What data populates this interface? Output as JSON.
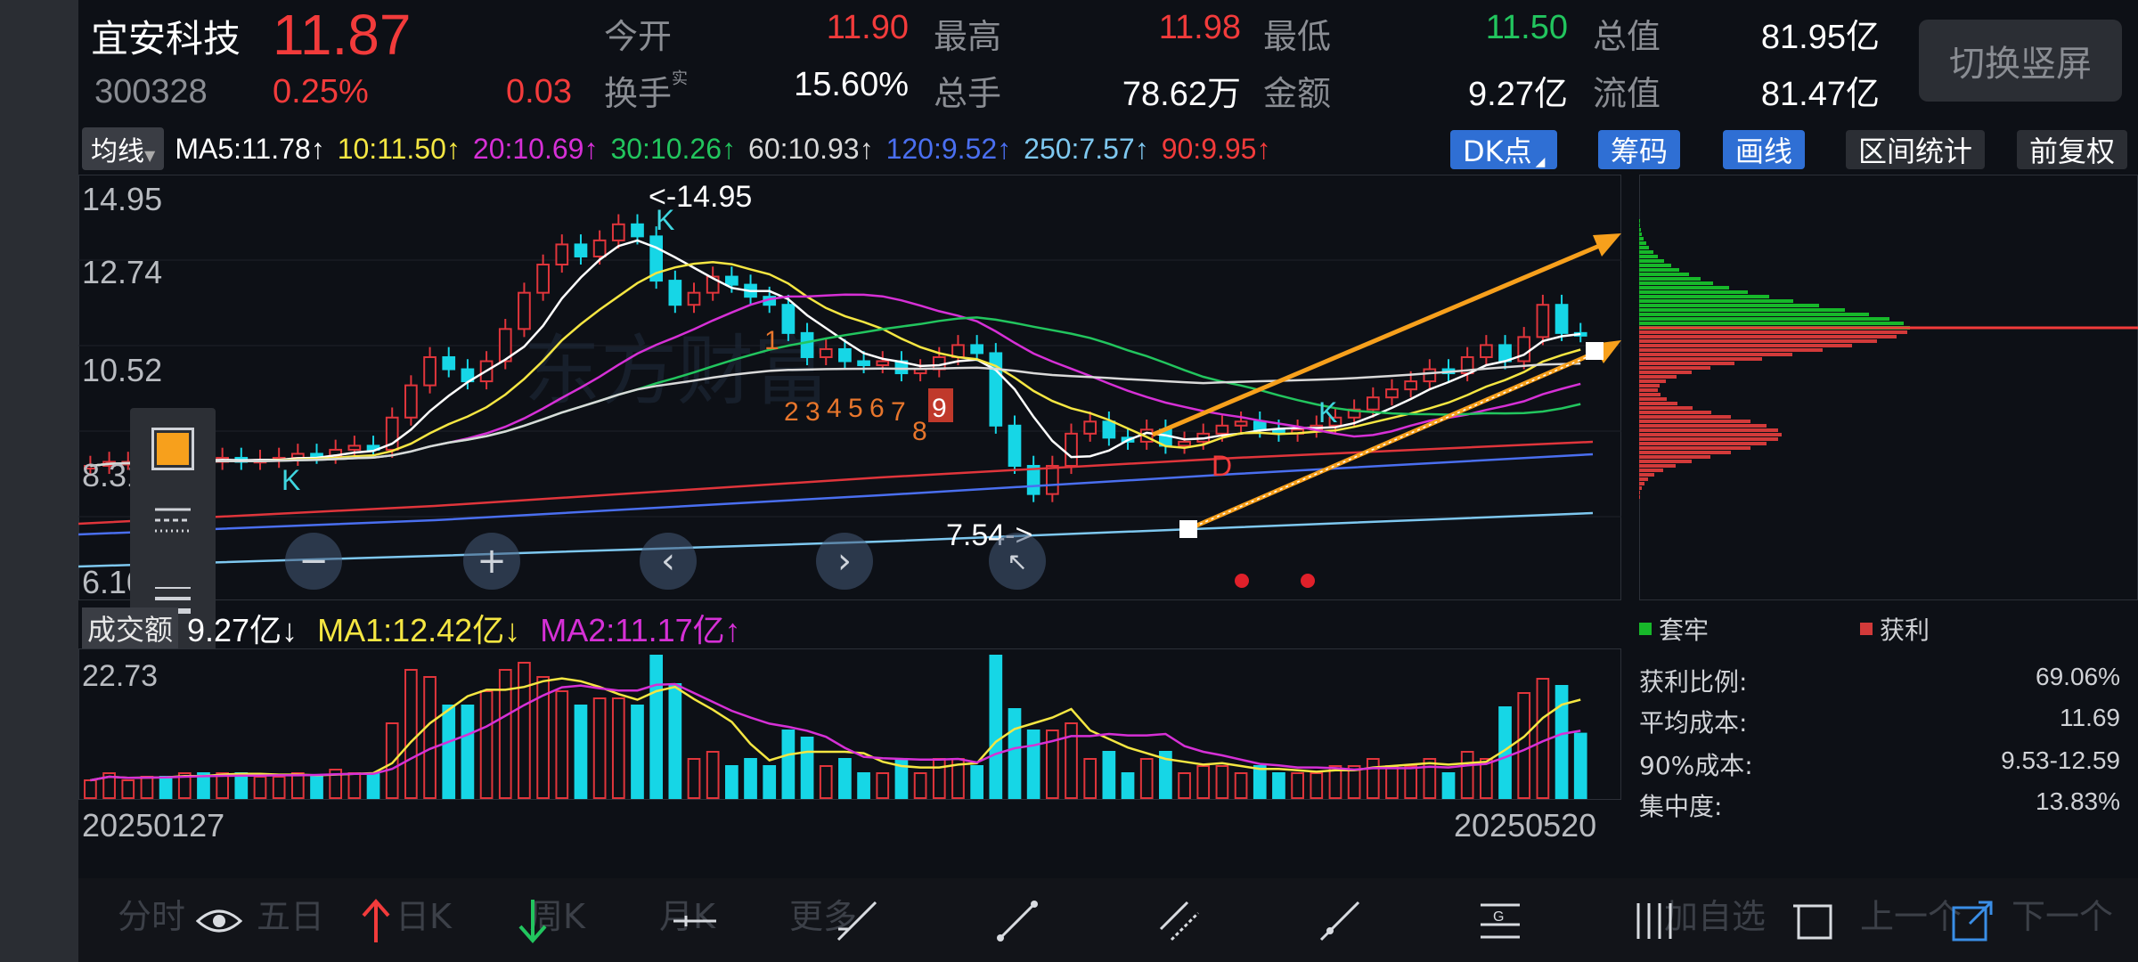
{
  "quote": {
    "name": "宜安科技",
    "price": "11.87",
    "code": "300328",
    "change_pct": "0.25%",
    "change": "0.03",
    "fields": [
      {
        "label": "今开",
        "value": "11.90",
        "color": "#f23b3b"
      },
      {
        "label": "最高",
        "value": "11.98",
        "color": "#f23b3b"
      },
      {
        "label": "最低",
        "value": "11.50",
        "color": "#22c55e"
      },
      {
        "label": "总值",
        "value": "81.95亿",
        "color": "#ffffff"
      },
      {
        "label": "换手",
        "label_sup": "实",
        "value": "15.60%",
        "color": "#ffffff"
      },
      {
        "label": "总手",
        "value": "78.62万",
        "color": "#ffffff"
      },
      {
        "label": "金额",
        "value": "9.27亿",
        "color": "#ffffff"
      },
      {
        "label": "流值",
        "value": "81.47亿",
        "color": "#ffffff"
      }
    ],
    "switch_label": "切换竖屏"
  },
  "ma_bar": {
    "type_label": "均线",
    "items": [
      {
        "text": "MA5:11.78↑",
        "color": "#ffffff"
      },
      {
        "text": "10:11.50↑",
        "color": "#f5e642"
      },
      {
        "text": "20:10.69↑",
        "color": "#d630d6"
      },
      {
        "text": "30:10.26↑",
        "color": "#22c55e"
      },
      {
        "text": "60:10.93↑",
        "color": "#d9d9d9"
      },
      {
        "text": "120:9.52↑",
        "color": "#4a6ff0"
      },
      {
        "text": "250:7.57↑",
        "color": "#7ec8f0"
      },
      {
        "text": "90:9.95↑",
        "color": "#f23b3b"
      }
    ],
    "tools": [
      "DK点",
      "筹码",
      "画线",
      "区间统计",
      "前复权"
    ]
  },
  "kchart": {
    "price_ticks": [
      "14.95",
      "12.74",
      "10.52",
      "8.31",
      "6.10"
    ],
    "high_label": "<-14.95",
    "low_label": "7.54->",
    "signal_k": "K",
    "signal_d": "D",
    "nine_turn": [
      "1",
      "2",
      "3",
      "4",
      "5",
      "6",
      "7",
      "8",
      "9"
    ],
    "watermark": "东方财富"
  },
  "chips": {
    "legend_trapped": "套牢",
    "legend_profit": "获利",
    "stats": [
      {
        "label": "获利比例:",
        "value": "69.06%"
      },
      {
        "label": "平均成本:",
        "value": "11.69"
      },
      {
        "label": "90%成本:",
        "value": "9.53-12.59"
      },
      {
        "label": "集中度:",
        "value": "13.83%"
      }
    ]
  },
  "volume": {
    "label": "成交额",
    "value": "9.27亿↓",
    "ma1": "MA1:12.42亿↓",
    "ma2": "MA2:11.17亿↑",
    "axis_top": "22.73"
  },
  "dates": {
    "start": "20250127",
    "end": "20250520"
  },
  "bottom_tabs": [
    "分时",
    "五日",
    "日K",
    "周K",
    "月K",
    "更多",
    "加自选",
    "上一个",
    "下一个"
  ],
  "chart_data": {
    "type": "candlestick",
    "ylim": [
      6.1,
      14.95
    ],
    "x_range": [
      "20250127",
      "20250520"
    ],
    "annotations": {
      "max": 14.95,
      "min": 7.54
    }
  }
}
